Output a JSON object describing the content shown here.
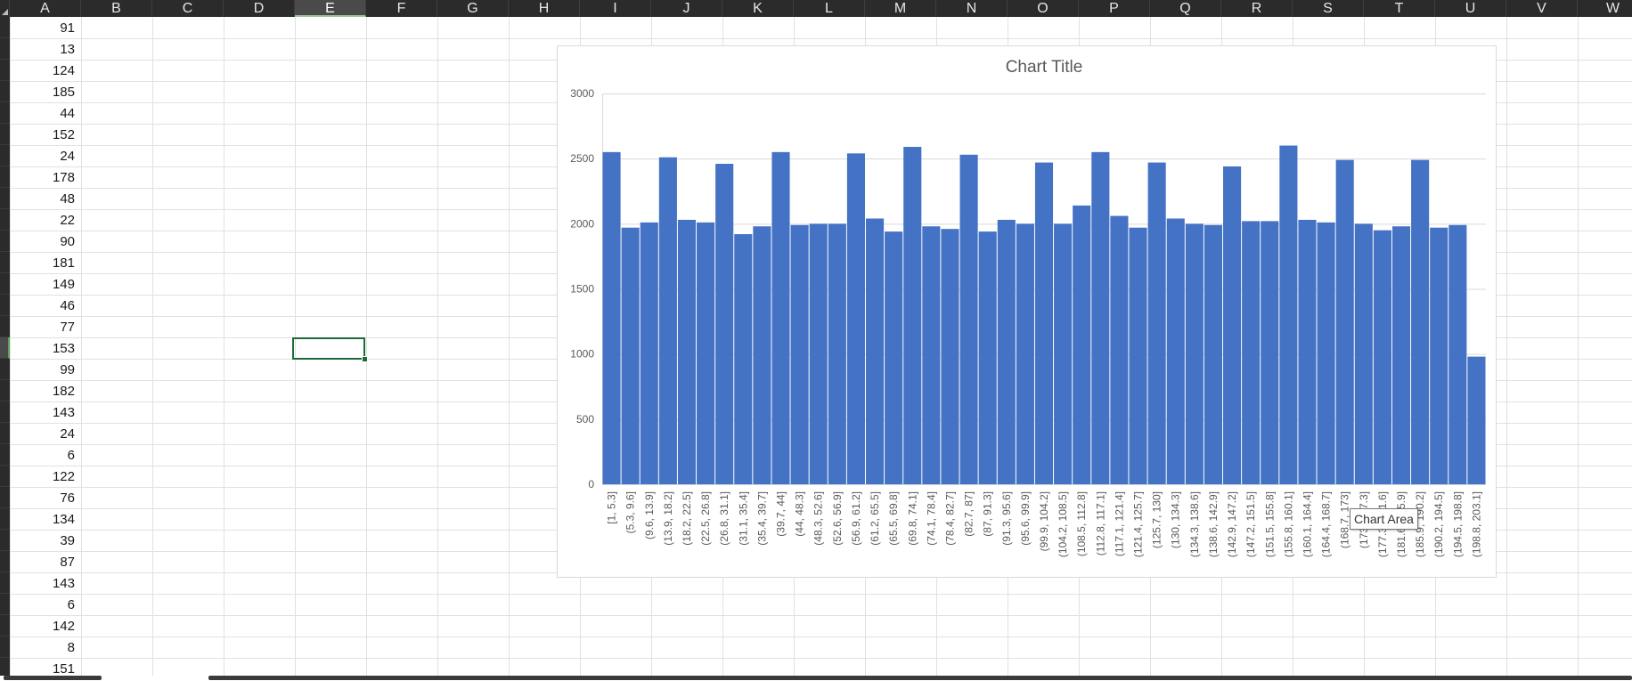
{
  "sheet": {
    "columns": [
      "A",
      "B",
      "C",
      "D",
      "E",
      "F",
      "G",
      "H",
      "I",
      "J",
      "K",
      "L",
      "M",
      "N",
      "O",
      "P",
      "Q",
      "R",
      "S",
      "T",
      "U",
      "V",
      "W"
    ],
    "selected_column": "E",
    "selected_cell": "E16",
    "column_a_values": [
      91,
      13,
      124,
      185,
      44,
      152,
      24,
      178,
      48,
      22,
      90,
      181,
      149,
      46,
      77,
      153,
      99,
      182,
      143,
      24,
      6,
      122,
      76,
      134,
      39,
      87,
      143,
      6,
      142,
      8,
      151
    ]
  },
  "chart": {
    "title": "Chart Title",
    "tooltip": "Chart Area",
    "bar_color": "#4472c4",
    "gridline_color": "#d9d9d9"
  },
  "chart_data": {
    "type": "bar",
    "title": "Chart Title",
    "xlabel": "",
    "ylabel": "",
    "ylim": [
      0,
      3000
    ],
    "yticks": [
      0,
      500,
      1000,
      1500,
      2000,
      2500,
      3000
    ],
    "grid": true,
    "legend": "none",
    "categories": [
      "[1, 5.3]",
      "(5.3, 9.6]",
      "(9.6, 13.9]",
      "(13.9, 18.2]",
      "(18.2, 22.5]",
      "(22.5, 26.8]",
      "(26.8, 31.1]",
      "(31.1, 35.4]",
      "(35.4, 39.7]",
      "(39.7, 44]",
      "(44, 48.3]",
      "(48.3, 52.6]",
      "(52.6, 56.9]",
      "(56.9, 61.2]",
      "(61.2, 65.5]",
      "(65.5, 69.8]",
      "(69.8, 74.1]",
      "(74.1, 78.4]",
      "(78.4, 82.7]",
      "(82.7, 87]",
      "(87, 91.3]",
      "(91.3, 95.6]",
      "(95.6, 99.9]",
      "(99.9, 104.2]",
      "(104.2, 108.5]",
      "(108.5, 112.8]",
      "(112.8, 117.1]",
      "(117.1, 121.4]",
      "(121.4, 125.7]",
      "(125.7, 130]",
      "(130, 134.3]",
      "(134.3, 138.6]",
      "(138.6, 142.9]",
      "(142.9, 147.2]",
      "(147.2, 151.5]",
      "(151.5, 155.8]",
      "(155.8, 160.1]",
      "(160.1, 164.4]",
      "(164.4, 168.7]",
      "(168.7, 173]",
      "(173, 177.3]",
      "(177.3, 181.6]",
      "(181.6, 185.9]",
      "(185.9, 190.2]",
      "(190.2, 194.5]",
      "(194.5, 198.8]",
      "(198.8, 203.1]"
    ],
    "values": [
      2550,
      1970,
      2010,
      2510,
      2030,
      2010,
      2460,
      1920,
      1980,
      2550,
      1990,
      2000,
      2000,
      2540,
      2040,
      1940,
      2590,
      1980,
      1960,
      2530,
      1940,
      2030,
      2000,
      2470,
      2000,
      2140,
      2550,
      2060,
      1970,
      2470,
      2040,
      2000,
      1990,
      2440,
      2020,
      2020,
      2600,
      2030,
      2010,
      2490,
      2000,
      1950,
      1980,
      2490,
      1970,
      1990,
      980
    ]
  }
}
